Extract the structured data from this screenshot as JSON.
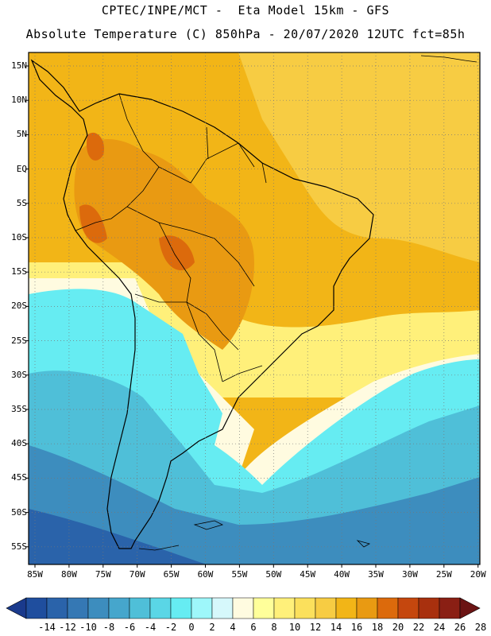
{
  "header": {
    "line1": "CPTEC/INPE/MCT -  Eta Model 15km - GFS",
    "line2": "Absolute Temperature (C) 850hPa - 20/07/2020 12UTC fct=85h"
  },
  "axes": {
    "lat_labels": [
      "15N",
      "10N",
      "5N",
      "EQ",
      "5S",
      "10S",
      "15S",
      "20S",
      "25S",
      "30S",
      "35S",
      "40S",
      "45S",
      "50S",
      "55S"
    ],
    "lon_labels": [
      "85W",
      "80W",
      "75W",
      "70W",
      "65W",
      "60W",
      "55W",
      "50W",
      "45W",
      "40W",
      "35W",
      "30W",
      "25W",
      "20W"
    ]
  },
  "colorbar": {
    "labels": [
      "-14",
      "-12",
      "-10",
      "-8",
      "-6",
      "-4",
      "-2",
      "0",
      "2",
      "4",
      "6",
      "8",
      "10",
      "12",
      "14",
      "16",
      "18",
      "20",
      "22",
      "24",
      "26",
      "28"
    ],
    "colors": [
      "#1a3a8c",
      "#1f4e9e",
      "#2a63aa",
      "#3578b4",
      "#3d8dbe",
      "#46a6cc",
      "#4fbfd8",
      "#5ad6e6",
      "#66ecf2",
      "#9ef7fa",
      "#d6f8fb",
      "#fffbe0",
      "#ffff9a",
      "#fff07a",
      "#fbe05c",
      "#f7cc43",
      "#f2b517",
      "#e99a12",
      "#dc6a0c",
      "#c5470e",
      "#a8300e",
      "#8a1f14",
      "#6b1414"
    ],
    "left_end_color": "#1a3a8c",
    "right_end_color": "#6b1414"
  }
}
